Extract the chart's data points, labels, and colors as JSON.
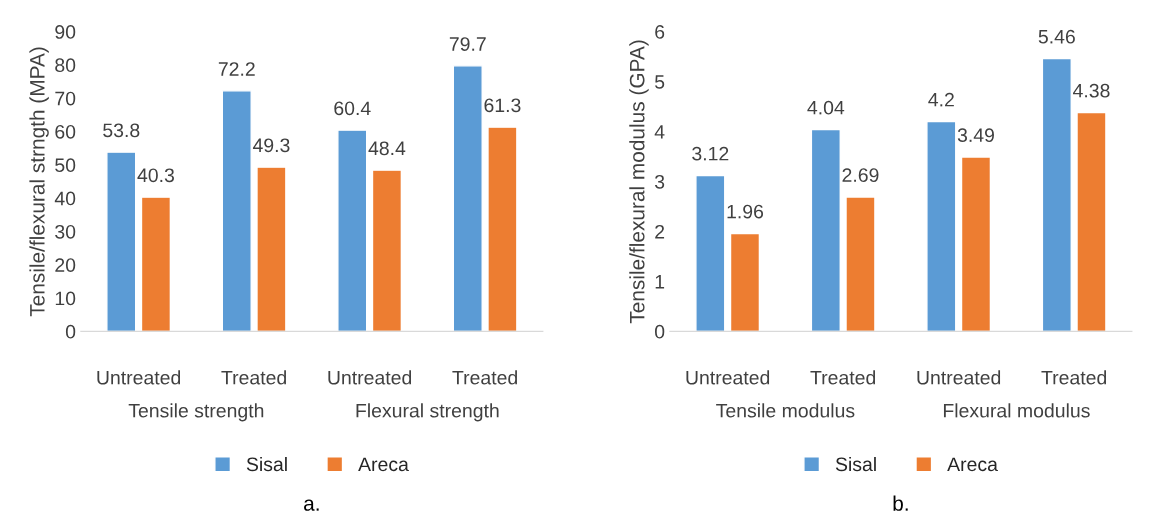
{
  "chart_data": [
    {
      "type": "bar",
      "ylabel": "Tensile/flexural strngth (MPA)",
      "categories": [
        "Untreated",
        "Treated",
        "Untreated",
        "Treated"
      ],
      "series": [
        {
          "name": "Sisal",
          "color": "#5b9bd5",
          "values": [
            53.8,
            72.2,
            60.4,
            79.7
          ]
        },
        {
          "name": "Areca",
          "color": "#ed7d31",
          "values": [
            40.3,
            49.3,
            48.4,
            61.3
          ]
        }
      ],
      "ylim": [
        0,
        90
      ],
      "yticks": [
        0,
        10,
        20,
        30,
        40,
        50,
        60,
        70,
        80,
        90
      ],
      "grid": false,
      "legend": "bottom",
      "data_labels": true,
      "annotations": [
        "Tensile strength",
        "Flexural strength",
        "a."
      ]
    },
    {
      "type": "bar",
      "ylabel": "Tensile/flexural modulus (GPA)",
      "categories": [
        "Untreated",
        "Treated",
        "Untreated",
        "Treated"
      ],
      "series": [
        {
          "name": "Sisal",
          "color": "#5b9bd5",
          "values": [
            3.12,
            4.04,
            4.2,
            5.46
          ]
        },
        {
          "name": "Areca",
          "color": "#ed7d31",
          "values": [
            1.96,
            2.69,
            3.49,
            4.38
          ]
        }
      ],
      "ylim": [
        0,
        6
      ],
      "yticks": [
        0,
        1,
        2,
        3,
        4,
        5,
        6
      ],
      "grid": false,
      "legend": "bottom",
      "data_labels": true,
      "annotations": [
        "Tensile modulus",
        "Flexural modulus",
        "b."
      ]
    }
  ]
}
